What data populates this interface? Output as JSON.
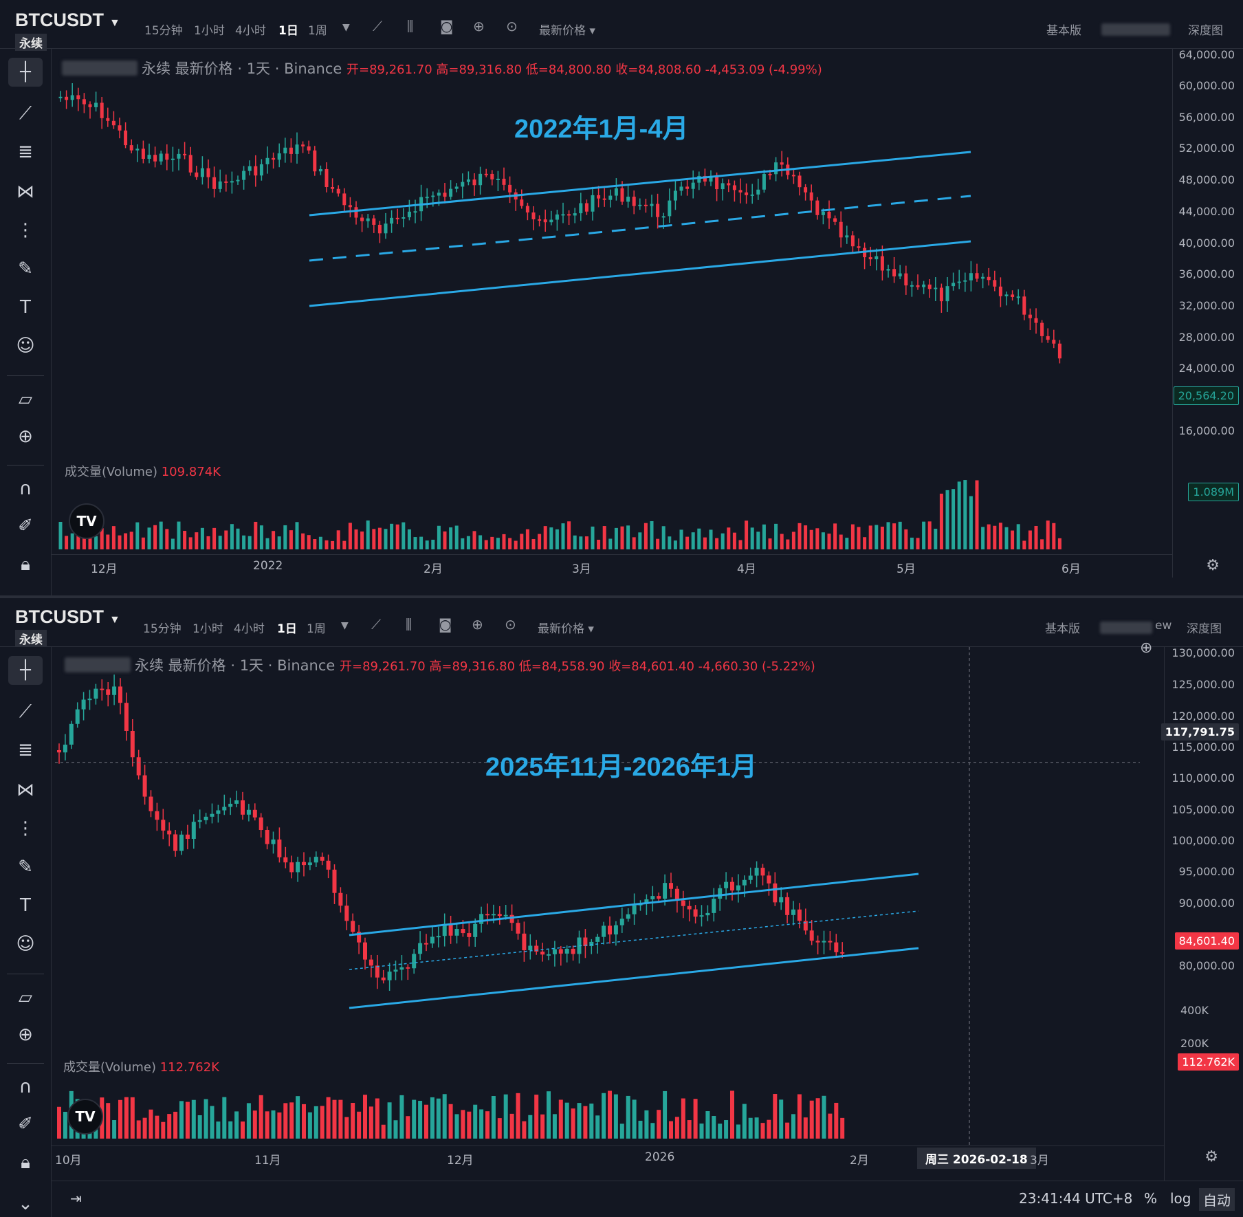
{
  "colors": {
    "up": "#26a69a",
    "down": "#f23645",
    "channel": "#2aa9e6",
    "bg": "#131722"
  },
  "toolbar": {
    "symbol": "BTCUSDT",
    "contract": "永续",
    "timeframes": [
      "15分钟",
      "1小时",
      "4小时",
      "1日",
      "1周"
    ],
    "active_timeframe": "1日",
    "price_type": "最新价格",
    "basic": "基本版",
    "depth": "深度图",
    "pane2_trading_suffix": "ew"
  },
  "sidebar_icons": [
    "crosshair-icon",
    "trendline-icon",
    "fib-icon",
    "pattern-icon",
    "forecast-icon",
    "brush-icon",
    "text-icon",
    "emoji-icon",
    "ruler-icon",
    "zoom-icon",
    "magnet-icon",
    "lock-pencil-icon",
    "lock-icon"
  ],
  "pane1": {
    "legend_title": "永续 最新价格 · 1天 · Binance",
    "ohlc": "开=89,261.70 高=89,316.80 低=84,800.80 收=84,808.60 -4,453.09 (-4.99%)",
    "annotation": "2022年1月-4月",
    "price_labels": [
      "64,000.00",
      "60,000.00",
      "56,000.00",
      "52,000.00",
      "48,000.00",
      "44,000.00",
      "40,000.00",
      "36,000.00",
      "32,000.00",
      "28,000.00",
      "24,000.00",
      "16,000.00"
    ],
    "last_price": "20,564.20",
    "volume_label": "成交量(Volume)",
    "volume_value": "109.874K",
    "volume_tag": "1.089M",
    "time_labels": [
      "12月",
      "2022",
      "2月",
      "3月",
      "4月",
      "5月",
      "6月"
    ]
  },
  "pane2": {
    "legend_title": "永续 最新价格 · 1天 · Binance",
    "ohlc": "开=89,261.70 高=89,316.80 低=84,558.90 收=84,601.40 -4,660.30 (-5.22%)",
    "annotation": "2025年11月-2026年1月",
    "price_labels": [
      "130,000.00",
      "125,000.00",
      "120,000.00",
      "115,000.00",
      "110,000.00",
      "105,000.00",
      "100,000.00",
      "95,000.00",
      "90,000.00",
      "80,000.00"
    ],
    "crosshair_price": "117,791.75",
    "last_price": "84,601.40",
    "volume_label": "成交量(Volume)",
    "volume_value": "112.762K",
    "volume_axis": [
      "400K",
      "200K"
    ],
    "volume_tag": "112.762K",
    "time_labels": [
      "10月",
      "11月",
      "12月",
      "2026",
      "2月",
      "3月"
    ],
    "crosshair_date": "周三 2026-02-18",
    "clock": "23:41:44 UTC+8",
    "pct": "%",
    "log": "log",
    "auto": "自动"
  }
}
